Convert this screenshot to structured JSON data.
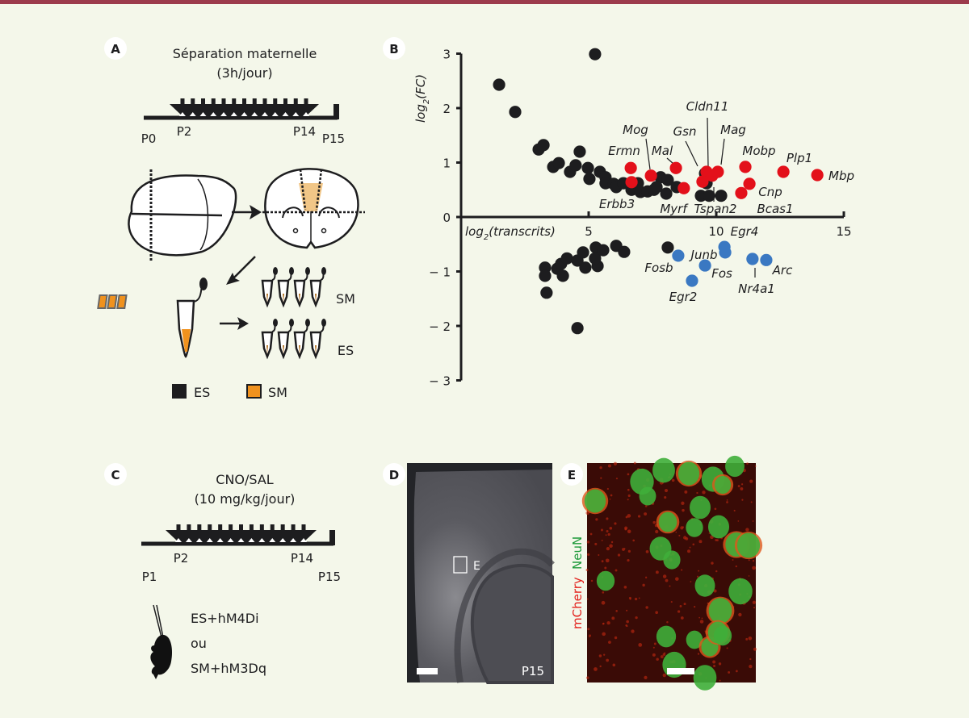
{
  "panels": {
    "A": {
      "label": "A",
      "title_line1": "Séparation maternelle",
      "title_line2": "(3h/jour)",
      "timeline": {
        "start": "P0",
        "first": "P2",
        "last": "P14",
        "end": "P15"
      },
      "tube_groups": [
        "SM",
        "ES"
      ],
      "legend": [
        {
          "label": "ES",
          "color": "#1d1d1f"
        },
        {
          "label": "SM",
          "color": "#f0921e"
        }
      ]
    },
    "B": {
      "label": "B"
    },
    "C": {
      "label": "C",
      "title_line1": "CNO/SAL",
      "title_line2": "(10 mg/kg/jour)",
      "timeline": {
        "start": "P1",
        "first": "P2",
        "last": "P14",
        "end": "P15"
      },
      "group1": {
        "text": "ES+hM4Di",
        "color": "#3a78c2"
      },
      "or": "ou",
      "group2": {
        "text": "SM+hM3Dq",
        "color": "#e3201b"
      }
    },
    "D": {
      "label": "D",
      "inset_label": "E",
      "age": "P15"
    },
    "E": {
      "label": "E",
      "stain1": "mCherry",
      "stain1_color": "#e3201b",
      "stain2": "NeuN",
      "stain2_color": "#1e9a3a"
    }
  },
  "chart_data": {
    "type": "scatter",
    "xlabel": "log2(transcrits)",
    "ylabel": "log2(FC)",
    "xlim": [
      0,
      15
    ],
    "ylim": [
      -3,
      3
    ],
    "xticks": [
      5,
      10,
      15
    ],
    "yticks": [
      3,
      2,
      1,
      0,
      -1,
      -2,
      -3
    ],
    "grid": false,
    "colors": {
      "other": "#1d1d1f",
      "up": "#e3101a",
      "down": "#3a78c2"
    },
    "series": [
      {
        "group": "other",
        "points": [
          [
            1.49,
            2.43
          ],
          [
            5.25,
            2.99
          ],
          [
            2.12,
            1.93
          ],
          [
            3.04,
            1.24
          ],
          [
            3.23,
            1.32
          ],
          [
            3.61,
            0.92
          ],
          [
            3.83,
            0.99
          ],
          [
            4.27,
            0.83
          ],
          [
            4.49,
            0.95
          ],
          [
            4.65,
            1.2
          ],
          [
            4.97,
            0.9
          ],
          [
            5.03,
            0.7
          ],
          [
            5.44,
            0.83
          ],
          [
            5.66,
            0.73
          ],
          [
            5.66,
            0.62
          ],
          [
            5.98,
            0.61
          ],
          [
            6.08,
            0.55
          ],
          [
            6.36,
            0.62
          ],
          [
            6.68,
            0.5
          ],
          [
            6.93,
            0.62
          ],
          [
            7.03,
            0.46
          ],
          [
            7.31,
            0.47
          ],
          [
            7.56,
            0.5
          ],
          [
            7.82,
            0.73
          ],
          [
            8.1,
            0.68
          ],
          [
            7.66,
            0.55
          ],
          [
            8.04,
            0.43
          ],
          [
            8.45,
            0.55
          ],
          [
            9.56,
            0.8
          ],
          [
            9.4,
            0.39
          ],
          [
            9.72,
            0.39
          ],
          [
            10.19,
            0.39
          ],
          [
            9.62,
            0.62
          ],
          [
            3.29,
            -0.93
          ],
          [
            3.29,
            -1.08
          ],
          [
            3.35,
            -1.39
          ],
          [
            3.77,
            -0.95
          ],
          [
            3.99,
            -1.08
          ],
          [
            3.92,
            -0.86
          ],
          [
            4.15,
            -0.76
          ],
          [
            4.56,
            -0.8
          ],
          [
            4.78,
            -0.65
          ],
          [
            4.87,
            -0.93
          ],
          [
            5.28,
            -0.56
          ],
          [
            5.35,
            -0.9
          ],
          [
            5.25,
            -0.76
          ],
          [
            5.57,
            -0.61
          ],
          [
            6.08,
            -0.53
          ],
          [
            6.39,
            -0.64
          ],
          [
            4.56,
            -2.04
          ],
          [
            8.1,
            -0.56
          ]
        ]
      },
      {
        "group": "up",
        "points": [
          [
            6.65,
            0.9
          ],
          [
            6.68,
            0.64
          ],
          [
            7.44,
            0.76
          ],
          [
            8.42,
            0.9
          ],
          [
            8.73,
            0.53
          ],
          [
            9.62,
            0.83
          ],
          [
            9.46,
            0.65
          ],
          [
            9.84,
            0.76
          ],
          [
            10.06,
            0.83
          ],
          [
            11.14,
            0.92
          ],
          [
            11.3,
            0.61
          ],
          [
            10.98,
            0.44
          ],
          [
            12.63,
            0.83
          ],
          [
            13.96,
            0.77
          ]
        ]
      },
      {
        "group": "down",
        "points": [
          [
            8.51,
            -0.71
          ],
          [
            9.56,
            -0.89
          ],
          [
            9.05,
            -1.17
          ],
          [
            10.32,
            -0.55
          ],
          [
            10.35,
            -0.65
          ],
          [
            11.42,
            -0.77
          ],
          [
            11.96,
            -0.79
          ]
        ]
      }
    ],
    "annotations": [
      "Ermn",
      "Mog",
      "Mal",
      "Gsn",
      "Cldn11",
      "Mag",
      "Mobp",
      "Plp1",
      "Mbp",
      "Cnp",
      "Bcas1",
      "Tspan2",
      "Myrf",
      "Erbb3",
      "Egr4",
      "Junb",
      "Fosb",
      "Fos",
      "Egr2",
      "Nr4a1",
      "Arc"
    ]
  }
}
